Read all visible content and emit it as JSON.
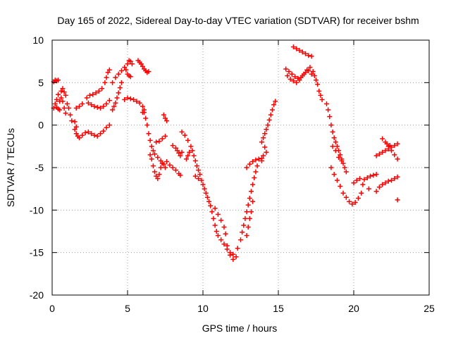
{
  "chart_data": {
    "type": "scatter",
    "title": "Day 165 of 2022, Sidereal Day-to-day VTEC variation (SDTVAR) for receiver bshm",
    "xlabel": "GPS time / hours",
    "ylabel": "SDTVAR / TECUs",
    "xlim": [
      0,
      25
    ],
    "ylim": [
      -20,
      10
    ],
    "xticks": [
      0,
      5,
      10,
      15,
      20,
      25
    ],
    "yticks": [
      -20,
      -15,
      -10,
      -5,
      0,
      5,
      10
    ],
    "grid": true,
    "marker": "+",
    "color": "#ff0000",
    "series": [
      {
        "name": "SDTVAR",
        "points": [
          [
            0.1,
            5.1
          ],
          [
            0.2,
            5.3
          ],
          [
            0.3,
            5.2
          ],
          [
            0.4,
            5.3
          ],
          [
            0.1,
            2.0
          ],
          [
            0.2,
            2.5
          ],
          [
            0.3,
            3.0
          ],
          [
            0.4,
            3.6
          ],
          [
            0.5,
            2.8
          ],
          [
            0.6,
            4.0
          ],
          [
            0.7,
            4.3
          ],
          [
            0.8,
            3.9
          ],
          [
            0.9,
            3.5
          ],
          [
            1.0,
            2.5
          ],
          [
            1.1,
            2.0
          ],
          [
            1.2,
            1.2
          ],
          [
            1.3,
            0.5
          ],
          [
            0.9,
            1.4
          ],
          [
            0.8,
            2.0
          ],
          [
            0.7,
            2.8
          ],
          [
            0.6,
            3.2
          ],
          [
            0.5,
            1.8
          ],
          [
            0.4,
            1.9
          ],
          [
            0.3,
            2.1
          ],
          [
            1.5,
            -0.5
          ],
          [
            1.6,
            -1.0
          ],
          [
            1.7,
            -1.3
          ],
          [
            1.8,
            -1.5
          ],
          [
            2.0,
            -1.2
          ],
          [
            2.2,
            -0.9
          ],
          [
            2.4,
            -0.8
          ],
          [
            2.6,
            -1.0
          ],
          [
            2.8,
            -1.2
          ],
          [
            3.0,
            -1.3
          ],
          [
            3.2,
            -1.0
          ],
          [
            3.4,
            -0.7
          ],
          [
            3.6,
            -0.3
          ],
          [
            3.8,
            0.0
          ],
          [
            1.5,
            0.4
          ],
          [
            1.6,
            -0.2
          ],
          [
            1.6,
            2.0
          ],
          [
            1.8,
            2.2
          ],
          [
            2.0,
            2.5
          ],
          [
            2.3,
            3.2
          ],
          [
            2.5,
            3.5
          ],
          [
            2.7,
            3.6
          ],
          [
            2.9,
            3.8
          ],
          [
            3.1,
            4.0
          ],
          [
            3.3,
            4.3
          ],
          [
            3.5,
            5.0
          ],
          [
            3.6,
            5.6
          ],
          [
            3.7,
            6.2
          ],
          [
            3.8,
            6.5
          ],
          [
            2.4,
            2.6
          ],
          [
            2.6,
            2.4
          ],
          [
            2.8,
            2.2
          ],
          [
            3.0,
            2.1
          ],
          [
            3.2,
            2.0
          ],
          [
            3.4,
            2.2
          ],
          [
            3.6,
            2.5
          ],
          [
            3.8,
            2.9
          ],
          [
            4.0,
            5.0
          ],
          [
            4.2,
            5.6
          ],
          [
            4.4,
            6.0
          ],
          [
            4.6,
            6.4
          ],
          [
            4.8,
            6.8
          ],
          [
            5.0,
            7.2
          ],
          [
            5.1,
            7.6
          ],
          [
            5.2,
            7.5
          ],
          [
            5.3,
            7.2
          ],
          [
            4.9,
            6.5
          ],
          [
            5.0,
            6.0
          ],
          [
            5.1,
            5.8
          ],
          [
            5.2,
            5.7
          ],
          [
            4.6,
            5.0
          ],
          [
            4.5,
            4.4
          ],
          [
            4.4,
            3.8
          ],
          [
            4.3,
            3.2
          ],
          [
            4.2,
            2.6
          ],
          [
            4.1,
            2.2
          ],
          [
            4.0,
            1.8
          ],
          [
            4.8,
            3.0
          ],
          [
            5.0,
            3.2
          ],
          [
            5.2,
            3.1
          ],
          [
            5.4,
            3.0
          ],
          [
            5.6,
            2.8
          ],
          [
            5.8,
            2.6
          ],
          [
            6.0,
            2.2
          ],
          [
            6.1,
            1.5
          ],
          [
            6.2,
            0.8
          ],
          [
            6.3,
            0.0
          ],
          [
            6.4,
            -1.0
          ],
          [
            6.5,
            -1.8
          ],
          [
            6.6,
            -2.5
          ],
          [
            6.7,
            -3.0
          ],
          [
            6.8,
            -3.4
          ],
          [
            7.0,
            -3.8
          ],
          [
            7.2,
            -4.2
          ],
          [
            7.4,
            -4.6
          ],
          [
            7.5,
            -5.0
          ],
          [
            5.7,
            7.6
          ],
          [
            5.8,
            7.4
          ],
          [
            5.9,
            7.2
          ],
          [
            6.0,
            6.9
          ],
          [
            6.1,
            6.6
          ],
          [
            6.2,
            6.4
          ],
          [
            6.3,
            6.2
          ],
          [
            6.4,
            6.3
          ],
          [
            6.1,
            1.8
          ],
          [
            6.0,
            1.5
          ],
          [
            6.5,
            -3.5
          ],
          [
            6.6,
            -4.0
          ],
          [
            6.7,
            -4.8
          ],
          [
            6.8,
            -5.5
          ],
          [
            6.9,
            -6.0
          ],
          [
            7.0,
            -6.3
          ],
          [
            7.1,
            -5.8
          ],
          [
            7.2,
            -5.0
          ],
          [
            7.3,
            -4.5
          ],
          [
            6.9,
            -2.0
          ],
          [
            7.1,
            -1.9
          ],
          [
            7.3,
            -1.6
          ],
          [
            7.5,
            -1.3
          ],
          [
            7.4,
            1.2
          ],
          [
            7.5,
            0.8
          ],
          [
            7.6,
            0.5
          ],
          [
            7.6,
            -4.3
          ],
          [
            7.8,
            -4.7
          ],
          [
            8.0,
            -5.0
          ],
          [
            8.2,
            -5.3
          ],
          [
            8.4,
            -5.7
          ],
          [
            8.5,
            -5.9
          ],
          [
            8.0,
            -2.4
          ],
          [
            8.2,
            -2.7
          ],
          [
            8.3,
            -3.0
          ],
          [
            8.4,
            -3.3
          ],
          [
            8.5,
            -3.6
          ],
          [
            8.6,
            -3.2
          ],
          [
            8.6,
            -0.8
          ],
          [
            8.8,
            -1.2
          ],
          [
            9.0,
            -1.8
          ],
          [
            9.2,
            -2.5
          ],
          [
            9.3,
            -3.0
          ],
          [
            9.4,
            -3.6
          ],
          [
            9.5,
            -4.2
          ],
          [
            9.6,
            -4.8
          ],
          [
            9.7,
            -5.3
          ],
          [
            9.8,
            -5.8
          ],
          [
            9.1,
            -3.2
          ],
          [
            9.0,
            -3.6
          ],
          [
            8.9,
            -4.0
          ],
          [
            9.5,
            -6.0
          ],
          [
            9.7,
            -6.3
          ],
          [
            9.9,
            -6.5
          ],
          [
            10.0,
            -7.0
          ],
          [
            10.1,
            -7.5
          ],
          [
            10.2,
            -8.0
          ],
          [
            10.3,
            -8.5
          ],
          [
            10.4,
            -9.0
          ],
          [
            10.5,
            -9.5
          ],
          [
            10.6,
            -10.2
          ],
          [
            10.7,
            -11.0
          ],
          [
            10.8,
            -11.8
          ],
          [
            10.9,
            -12.5
          ],
          [
            11.0,
            -13.0
          ],
          [
            11.2,
            -13.5
          ],
          [
            11.4,
            -14.0
          ],
          [
            11.6,
            -14.6
          ],
          [
            11.8,
            -15.0
          ],
          [
            12.0,
            -15.2
          ],
          [
            12.2,
            -15.5
          ],
          [
            12.0,
            -15.8
          ],
          [
            11.8,
            -15.3
          ],
          [
            11.6,
            -14.2
          ],
          [
            10.8,
            -9.8
          ],
          [
            11.0,
            -10.5
          ],
          [
            11.2,
            -11.2
          ],
          [
            11.4,
            -12.0
          ],
          [
            11.5,
            -12.8
          ],
          [
            12.3,
            -14.5
          ],
          [
            12.5,
            -13.5
          ],
          [
            12.6,
            -12.6
          ],
          [
            12.7,
            -11.8
          ],
          [
            12.8,
            -11.0
          ],
          [
            12.9,
            -10.2
          ],
          [
            13.0,
            -9.4
          ],
          [
            13.1,
            -8.6
          ],
          [
            13.2,
            -7.8
          ],
          [
            13.3,
            -7.0
          ],
          [
            13.4,
            -6.2
          ],
          [
            13.5,
            -5.5
          ],
          [
            13.6,
            -4.8
          ],
          [
            12.9,
            -13.0
          ],
          [
            13.0,
            -12.0
          ],
          [
            13.1,
            -11.0
          ],
          [
            13.2,
            -10.2
          ],
          [
            13.3,
            -9.0
          ],
          [
            12.9,
            -5.0
          ],
          [
            13.1,
            -4.6
          ],
          [
            13.3,
            -4.3
          ],
          [
            13.5,
            -4.1
          ],
          [
            13.7,
            -4.0
          ],
          [
            13.9,
            -4.2
          ],
          [
            13.9,
            -2.0
          ],
          [
            14.0,
            -1.5
          ],
          [
            14.1,
            -1.0
          ],
          [
            14.2,
            -0.5
          ],
          [
            14.3,
            0.0
          ],
          [
            14.4,
            0.6
          ],
          [
            14.5,
            1.2
          ],
          [
            14.6,
            1.8
          ],
          [
            14.7,
            2.4
          ],
          [
            14.8,
            2.8
          ],
          [
            14.1,
            -2.6
          ],
          [
            14.2,
            -3.2
          ],
          [
            14.0,
            -3.6
          ],
          [
            13.9,
            -3.9
          ],
          [
            15.6,
            5.8
          ],
          [
            15.8,
            5.4
          ],
          [
            16.0,
            5.2
          ],
          [
            16.2,
            5.0
          ],
          [
            16.4,
            5.3
          ],
          [
            16.6,
            5.8
          ],
          [
            16.8,
            6.2
          ],
          [
            17.0,
            6.4
          ],
          [
            17.2,
            6.0
          ],
          [
            16.0,
            9.2
          ],
          [
            16.2,
            9.0
          ],
          [
            16.4,
            8.8
          ],
          [
            16.6,
            8.6
          ],
          [
            16.8,
            8.4
          ],
          [
            17.0,
            8.2
          ],
          [
            17.2,
            8.1
          ],
          [
            15.5,
            6.6
          ],
          [
            15.7,
            6.3
          ],
          [
            15.9,
            6.0
          ],
          [
            16.1,
            5.7
          ],
          [
            16.3,
            5.5
          ],
          [
            16.5,
            5.6
          ],
          [
            16.7,
            6.0
          ],
          [
            16.9,
            6.5
          ],
          [
            17.1,
            6.8
          ],
          [
            17.3,
            6.3
          ],
          [
            17.4,
            5.8
          ],
          [
            17.5,
            5.3
          ],
          [
            17.6,
            4.8
          ],
          [
            17.7,
            4.0
          ],
          [
            17.8,
            3.5
          ],
          [
            17.9,
            3.0
          ],
          [
            18.2,
            2.5
          ],
          [
            18.3,
            1.8
          ],
          [
            18.4,
            1.0
          ],
          [
            18.5,
            0.0
          ],
          [
            18.6,
            -0.8
          ],
          [
            18.7,
            -1.5
          ],
          [
            18.8,
            -2.0
          ],
          [
            18.9,
            -2.5
          ],
          [
            19.0,
            -3.0
          ],
          [
            19.1,
            -3.5
          ],
          [
            19.2,
            -4.0
          ],
          [
            19.3,
            -4.5
          ],
          [
            19.4,
            -5.0
          ],
          [
            19.5,
            -5.5
          ],
          [
            18.6,
            -2.5
          ],
          [
            18.8,
            -3.0
          ],
          [
            19.0,
            -3.8
          ],
          [
            19.2,
            -4.2
          ],
          [
            18.5,
            -5.0
          ],
          [
            18.7,
            -5.8
          ],
          [
            18.9,
            -6.5
          ],
          [
            19.1,
            -7.2
          ],
          [
            19.3,
            -8.0
          ],
          [
            19.5,
            -8.5
          ],
          [
            19.7,
            -9.0
          ],
          [
            19.9,
            -9.3
          ],
          [
            20.1,
            -9.1
          ],
          [
            20.3,
            -8.6
          ],
          [
            20.5,
            -8.0
          ],
          [
            20.6,
            -7.0
          ],
          [
            20.7,
            -6.4
          ],
          [
            20.0,
            -6.8
          ],
          [
            20.2,
            -6.5
          ],
          [
            20.4,
            -6.3
          ],
          [
            20.9,
            -6.2
          ],
          [
            21.1,
            -6.0
          ],
          [
            21.3,
            -5.9
          ],
          [
            21.5,
            -5.8
          ],
          [
            21.0,
            -7.5
          ],
          [
            21.5,
            -3.6
          ],
          [
            21.7,
            -3.4
          ],
          [
            21.9,
            -3.2
          ],
          [
            22.1,
            -3.0
          ],
          [
            22.3,
            -2.8
          ],
          [
            22.5,
            -2.6
          ],
          [
            22.7,
            -2.4
          ],
          [
            22.9,
            -2.2
          ],
          [
            21.9,
            -1.6
          ],
          [
            22.1,
            -2.0
          ],
          [
            22.3,
            -2.5
          ],
          [
            22.5,
            -3.0
          ],
          [
            22.7,
            -3.5
          ],
          [
            22.9,
            -4.0
          ],
          [
            22.2,
            -2.2
          ],
          [
            22.4,
            -2.4
          ],
          [
            21.5,
            -7.8
          ],
          [
            21.7,
            -7.3
          ],
          [
            21.9,
            -7.0
          ],
          [
            22.1,
            -6.8
          ],
          [
            22.3,
            -6.6
          ],
          [
            22.5,
            -6.5
          ],
          [
            22.7,
            -6.3
          ],
          [
            22.9,
            -6.1
          ],
          [
            22.9,
            -8.8
          ]
        ]
      }
    ]
  }
}
